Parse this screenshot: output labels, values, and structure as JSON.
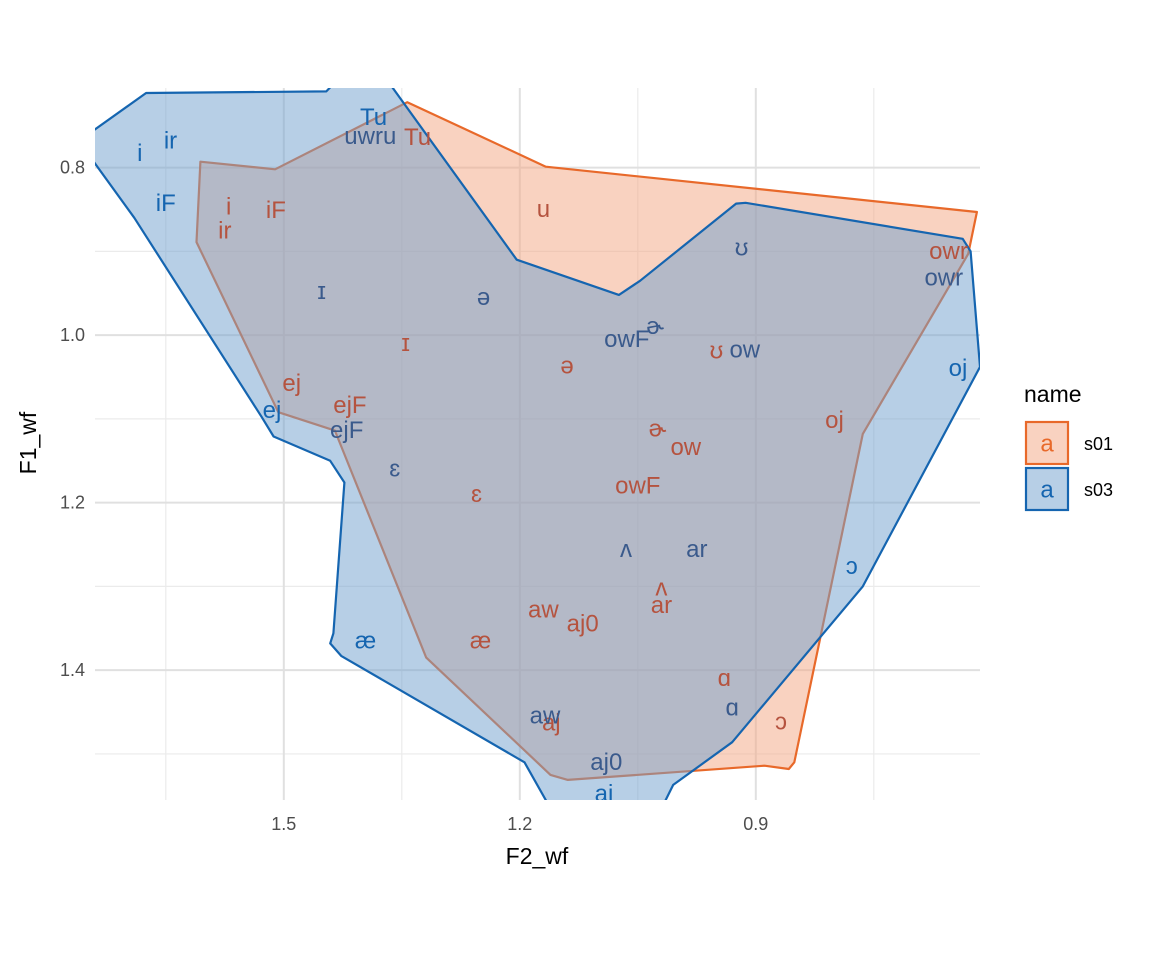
{
  "chart_data": {
    "type": "scatter",
    "xlabel": "F2_wf",
    "ylabel": "F1_wf",
    "x_reversed": true,
    "y_reversed": true,
    "xlim": [
      1.74,
      0.615
    ],
    "ylim": [
      0.705,
      1.555
    ],
    "x_ticks": [
      1.5,
      1.2,
      0.9
    ],
    "x_tick_labels": [
      "1.5",
      "1.2",
      "0.9"
    ],
    "x_minor": [
      1.65,
      1.35,
      1.05,
      0.75
    ],
    "y_ticks": [
      0.8,
      1.0,
      1.2,
      1.4
    ],
    "y_tick_labels": [
      "0.8",
      "1.0",
      "1.2",
      "1.4"
    ],
    "y_minor": [
      0.9,
      1.1,
      1.3,
      1.5
    ],
    "grid": true,
    "legend": {
      "title": "name",
      "position": "right",
      "key_glyph": "a",
      "entries": [
        "s01",
        "s03"
      ]
    },
    "colors": {
      "s01": {
        "line": "#E8692A",
        "fill": "#F4A582",
        "text": "#B5533F"
      },
      "s03": {
        "line": "#1565B0",
        "fill": "#6F9FCE",
        "text": "#1565B0",
        "text_overlap": "#3A5A8C"
      }
    },
    "series": [
      {
        "name": "s01",
        "hull": [
          [
            1.343,
            0.722
          ],
          [
            1.167,
            0.799
          ],
          [
            0.619,
            0.853
          ],
          [
            0.63,
            0.903
          ],
          [
            0.764,
            1.118
          ],
          [
            0.851,
            1.51
          ],
          [
            0.858,
            1.518
          ],
          [
            0.889,
            1.514
          ],
          [
            1.139,
            1.531
          ],
          [
            1.161,
            1.525
          ],
          [
            1.319,
            1.385
          ],
          [
            1.435,
            1.114
          ],
          [
            1.507,
            1.092
          ],
          [
            1.611,
            0.889
          ],
          [
            1.606,
            0.793
          ],
          [
            1.511,
            0.802
          ]
        ],
        "points": [
          {
            "label": "Tu",
            "x": 1.33,
            "y": 0.764
          },
          {
            "label": "u",
            "x": 1.17,
            "y": 0.85
          },
          {
            "label": "i",
            "x": 1.57,
            "y": 0.847
          },
          {
            "label": "iF",
            "x": 1.51,
            "y": 0.851
          },
          {
            "label": "ir",
            "x": 1.575,
            "y": 0.876
          },
          {
            "label": "owr",
            "x": 0.655,
            "y": 0.9
          },
          {
            "label": "ɪ",
            "x": 1.345,
            "y": 1.01
          },
          {
            "label": "ə",
            "x": 1.14,
            "y": 1.037
          },
          {
            "label": "ʊ",
            "x": 0.95,
            "y": 1.019
          },
          {
            "label": "ej",
            "x": 1.49,
            "y": 1.058
          },
          {
            "label": "ejF",
            "x": 1.416,
            "y": 1.084
          },
          {
            "label": "oj",
            "x": 0.8,
            "y": 1.102
          },
          {
            "label": "ɚ",
            "x": 1.025,
            "y": 1.112
          },
          {
            "label": "ow",
            "x": 0.989,
            "y": 1.134
          },
          {
            "label": "owF",
            "x": 1.05,
            "y": 1.18
          },
          {
            "label": "ɛ",
            "x": 1.255,
            "y": 1.19
          },
          {
            "label": "ʌ",
            "x": 1.02,
            "y": 1.302
          },
          {
            "label": "ar",
            "x": 1.02,
            "y": 1.323
          },
          {
            "label": "aw",
            "x": 1.17,
            "y": 1.328
          },
          {
            "label": "aj0",
            "x": 1.12,
            "y": 1.345
          },
          {
            "label": "æ",
            "x": 1.25,
            "y": 1.365
          },
          {
            "label": "ɑ",
            "x": 0.94,
            "y": 1.41
          },
          {
            "label": "ɔ",
            "x": 0.868,
            "y": 1.462
          },
          {
            "label": "aj",
            "x": 1.16,
            "y": 1.463
          }
        ]
      },
      {
        "name": "s03",
        "hull": [
          [
            1.744,
            0.757
          ],
          [
            1.675,
            0.711
          ],
          [
            1.446,
            0.709
          ],
          [
            1.396,
            0.66
          ],
          [
            1.204,
            0.91
          ],
          [
            1.074,
            0.952
          ],
          [
            1.047,
            0.935
          ],
          [
            0.925,
            0.843
          ],
          [
            0.913,
            0.842
          ],
          [
            0.637,
            0.885
          ],
          [
            0.627,
            0.9
          ],
          [
            0.615,
            1.038
          ],
          [
            0.764,
            1.3
          ],
          [
            0.93,
            1.486
          ],
          [
            1.005,
            1.537
          ],
          [
            1.086,
            1.69
          ],
          [
            1.194,
            1.51
          ],
          [
            1.427,
            1.383
          ],
          [
            1.441,
            1.368
          ],
          [
            1.437,
            1.356
          ],
          [
            1.423,
            1.176
          ],
          [
            1.441,
            1.15
          ],
          [
            1.513,
            1.121
          ],
          [
            1.528,
            1.098
          ],
          [
            1.69,
            0.86
          ],
          [
            1.744,
            0.79
          ]
        ],
        "points": [
          {
            "label": "Tu",
            "x": 1.386,
            "y": 0.74
          },
          {
            "label": "uwru",
            "x": 1.39,
            "y": 0.763
          },
          {
            "label": "ir",
            "x": 1.644,
            "y": 0.768
          },
          {
            "label": "i",
            "x": 1.683,
            "y": 0.783
          },
          {
            "label": "iF",
            "x": 1.65,
            "y": 0.843
          },
          {
            "label": "ʊ",
            "x": 0.918,
            "y": 0.896
          },
          {
            "label": "owr",
            "x": 0.661,
            "y": 0.932
          },
          {
            "label": "ɪ",
            "x": 1.452,
            "y": 0.948
          },
          {
            "label": "ə",
            "x": 1.246,
            "y": 0.955
          },
          {
            "label": "ɚ",
            "x": 1.028,
            "y": 0.99
          },
          {
            "label": "owF",
            "x": 1.064,
            "y": 1.005
          },
          {
            "label": "ow",
            "x": 0.914,
            "y": 1.018
          },
          {
            "label": "oj",
            "x": 0.643,
            "y": 1.04
          },
          {
            "label": "ej",
            "x": 1.515,
            "y": 1.09
          },
          {
            "label": "ejF",
            "x": 1.42,
            "y": 1.114
          },
          {
            "label": "ɛ",
            "x": 1.359,
            "y": 1.16
          },
          {
            "label": "ʌ",
            "x": 1.065,
            "y": 1.256
          },
          {
            "label": "ar",
            "x": 0.975,
            "y": 1.256
          },
          {
            "label": "ɔ",
            "x": 0.778,
            "y": 1.276
          },
          {
            "label": "æ",
            "x": 1.396,
            "y": 1.365
          },
          {
            "label": "ɑ",
            "x": 0.93,
            "y": 1.445
          },
          {
            "label": "aw",
            "x": 1.168,
            "y": 1.455
          },
          {
            "label": "aj0",
            "x": 1.09,
            "y": 1.51
          },
          {
            "label": "aj",
            "x": 1.093,
            "y": 1.548
          }
        ]
      }
    ]
  }
}
